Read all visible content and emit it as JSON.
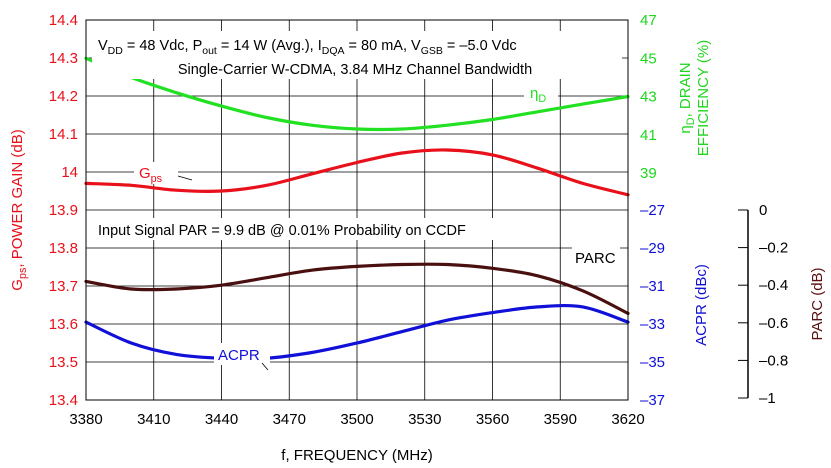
{
  "chart_data": {
    "type": "line",
    "x_axis": {
      "label": "f, FREQUENCY (MHz)",
      "min": 3380,
      "max": 3620,
      "ticks": [
        "3380",
        "3410",
        "3440",
        "3470",
        "3500",
        "3530",
        "3560",
        "3590",
        "3620"
      ]
    },
    "left_axis": {
      "label_main": "G",
      "label_sub": "ps",
      "label_rest": ", POWER GAIN (dB)",
      "min": 13.4,
      "max": 14.4,
      "ticks": [
        "14.4",
        "14.3",
        "14.2",
        "14.1",
        "14",
        "13.9",
        "13.8",
        "13.7",
        "13.6",
        "13.5",
        "13.4"
      ],
      "color": "#e8101a"
    },
    "right_axis_top": {
      "label_main": "η",
      "label_sub": "D",
      "label_rest": ", DRAIN",
      "label_line2": "EFFICIENCY (%)",
      "ticks": [
        "47",
        "45",
        "43",
        "41",
        "39"
      ],
      "min": 37,
      "max": 47,
      "color": "#1fd61f"
    },
    "right_axis_bottom": {
      "label": "ACPR (dBc)",
      "ticks": [
        "-27",
        "-29",
        "-31",
        "-33",
        "-35",
        "-37"
      ],
      "min": -37,
      "max": -27,
      "color": "#1010d8"
    },
    "parc_axis": {
      "label": "PARC (dB)",
      "ticks": [
        "0",
        "-0.2",
        "-0.4",
        "-0.6",
        "-0.8",
        "-1"
      ],
      "min": -1,
      "max": 0,
      "color": "#5a1010"
    },
    "annotations": {
      "line1_parts": [
        "V",
        "DD",
        " = 48 Vdc, P",
        "out",
        " = 14 W (Avg.), I",
        "DQA",
        " = 80 mA, V",
        "GSB",
        " = –5.0 Vdc"
      ],
      "line2": "Single-Carrier W-CDMA, 3.84 MHz Channel Bandwidth",
      "line3": "Input Signal PAR = 9.9 dB @ 0.01% Probability on CCDF"
    },
    "series": [
      {
        "name": "Gps",
        "label_main": "G",
        "label_sub": "ps",
        "axis": "left",
        "color": "#e8101a",
        "x": [
          3380,
          3400,
          3420,
          3440,
          3460,
          3480,
          3500,
          3520,
          3540,
          3560,
          3580,
          3600,
          3620
        ],
        "y": [
          13.97,
          13.965,
          13.952,
          13.95,
          13.965,
          13.995,
          14.025,
          14.05,
          14.058,
          14.045,
          14.01,
          13.97,
          13.94
        ]
      },
      {
        "name": "ηD",
        "label_main": "η",
        "label_sub": "D",
        "axis": "eff",
        "color": "#22e022",
        "x": [
          3380,
          3400,
          3420,
          3440,
          3460,
          3480,
          3500,
          3520,
          3540,
          3560,
          3580,
          3600,
          3620
        ],
        "y": [
          45.0,
          44.0,
          43.2,
          42.5,
          41.9,
          41.5,
          41.3,
          41.3,
          41.5,
          41.8,
          42.2,
          42.6,
          43.0
        ]
      },
      {
        "name": "PARC",
        "label_main": "PARC",
        "axis": "parc",
        "color": "#4a0f0f",
        "x": [
          3380,
          3400,
          3420,
          3440,
          3460,
          3480,
          3500,
          3520,
          3540,
          3560,
          3580,
          3600,
          3620
        ],
        "y": [
          -0.38,
          -0.42,
          -0.42,
          -0.4,
          -0.36,
          -0.32,
          -0.3,
          -0.29,
          -0.29,
          -0.31,
          -0.35,
          -0.43,
          -0.55
        ]
      },
      {
        "name": "ACPR",
        "label_main": "ACPR",
        "axis": "acpr",
        "color": "#1010d8",
        "x": [
          3380,
          3400,
          3420,
          3440,
          3460,
          3480,
          3500,
          3520,
          3540,
          3560,
          3580,
          3600,
          3620
        ],
        "y": [
          -32.9,
          -34.0,
          -34.6,
          -34.8,
          -34.8,
          -34.5,
          -34.0,
          -33.4,
          -32.8,
          -32.4,
          -32.1,
          -32.1,
          -32.9
        ]
      }
    ],
    "grid": true
  }
}
